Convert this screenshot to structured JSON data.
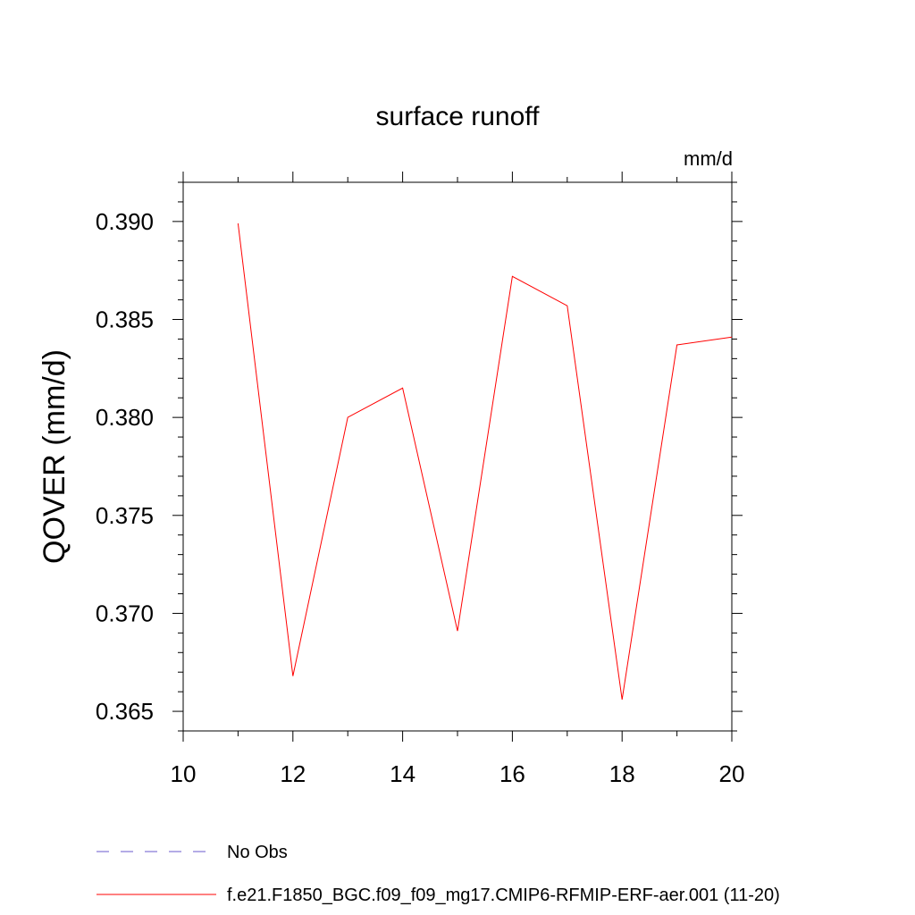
{
  "chart_data": {
    "type": "line",
    "title": "surface runoff",
    "units_label": "mm/d",
    "xlabel": "",
    "ylabel": "QOVER  (mm/d)",
    "xlim": [
      10,
      20
    ],
    "ylim": [
      0.364,
      0.392
    ],
    "x_ticks": [
      10,
      12,
      14,
      16,
      18,
      20
    ],
    "x_tick_labels": [
      "10",
      "12",
      "14",
      "16",
      "18",
      "20"
    ],
    "y_ticks": [
      0.365,
      0.37,
      0.375,
      0.38,
      0.385,
      0.39
    ],
    "y_tick_labels": [
      "0.365",
      "0.370",
      "0.375",
      "0.380",
      "0.385",
      "0.390"
    ],
    "grid": false,
    "legend_position": "bottom",
    "series": [
      {
        "name": "f.e21.F1850_BGC.f09_f09_mg17.CMIP6-RFMIP-ERF-aer.001 (11-20)",
        "color": "#ff0000",
        "style": "solid",
        "x": [
          11,
          12,
          13,
          14,
          15,
          16,
          17,
          18,
          19,
          20
        ],
        "y": [
          0.3899,
          0.3668,
          0.38,
          0.3815,
          0.3691,
          0.3872,
          0.3857,
          0.3656,
          0.3837,
          0.3841
        ]
      }
    ],
    "legend": [
      {
        "label": "No Obs",
        "color": "#6a5acd",
        "style": "dashed"
      },
      {
        "label": "f.e21.F1850_BGC.f09_f09_mg17.CMIP6-RFMIP-ERF-aer.001 (11-20)",
        "color": "#ff0000",
        "style": "solid"
      }
    ]
  }
}
